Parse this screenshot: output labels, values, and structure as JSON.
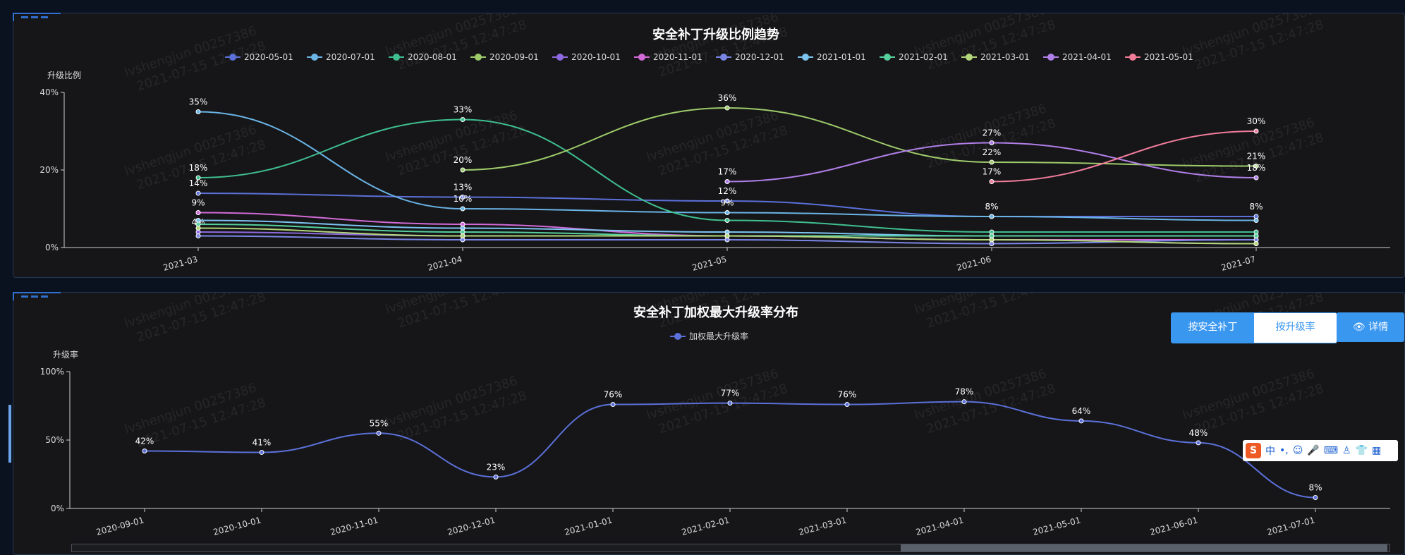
{
  "charts": {
    "trend": {
      "title": "安全补丁升级比例趋势",
      "ylabel": "升级比例"
    },
    "dist": {
      "title": "安全补丁加权最大升级率分布",
      "ylabel": "升级率"
    }
  },
  "controls": {
    "toggle_patch": "按安全补丁",
    "toggle_rate": "按升级率",
    "detail": "详情",
    "eye_icon": "eye-icon"
  },
  "watermark": {
    "line1": "lvshengjun 00257386",
    "line2": "2021-07-15 12:47:28"
  },
  "ime": {
    "logo": "S",
    "lang": "中"
  },
  "chart_data": [
    {
      "type": "line",
      "title": "安全补丁升级比例趋势",
      "xlabel": "",
      "ylabel": "升级比例",
      "ylim": [
        0,
        40
      ],
      "yticks": [
        "0%",
        "20%",
        "40%"
      ],
      "x": [
        "2021-03",
        "2021-04",
        "2021-05",
        "2021-06",
        "2021-07"
      ],
      "legend_position": "top-center",
      "series": [
        {
          "name": "2020-05-01",
          "color": "#5b70d9",
          "values": [
            14,
            13,
            12,
            8,
            8
          ]
        },
        {
          "name": "2020-07-01",
          "color": "#6ab4e6",
          "values": [
            35,
            10,
            9,
            8,
            7
          ]
        },
        {
          "name": "2020-08-01",
          "color": "#3fbf8f",
          "values": [
            18,
            33,
            7,
            4,
            4
          ]
        },
        {
          "name": "2020-09-01",
          "color": "#9ecb6a",
          "values": [
            null,
            20,
            36,
            22,
            21
          ]
        },
        {
          "name": "2020-10-01",
          "color": "#8e6ae0",
          "values": [
            4,
            3,
            3,
            2,
            1
          ]
        },
        {
          "name": "2020-11-01",
          "color": "#d26ad8",
          "values": [
            9,
            6,
            3,
            2,
            2
          ]
        },
        {
          "name": "2020-12-01",
          "color": "#7a86e6",
          "values": [
            3,
            2,
            2,
            1,
            2
          ]
        },
        {
          "name": "2021-01-01",
          "color": "#7cc3f0",
          "values": [
            7,
            5,
            4,
            3,
            3
          ]
        },
        {
          "name": "2021-02-01",
          "color": "#55cf9c",
          "values": [
            6,
            4,
            3,
            3,
            3
          ]
        },
        {
          "name": "2021-03-01",
          "color": "#b2d67a",
          "values": [
            5,
            3,
            3,
            2,
            1
          ]
        },
        {
          "name": "2021-04-01",
          "color": "#b07ee8",
          "values": [
            null,
            null,
            17,
            27,
            18
          ]
        },
        {
          "name": "2021-05-01",
          "color": "#f07c9a",
          "values": [
            null,
            null,
            null,
            17,
            30
          ]
        }
      ],
      "data_labels": [
        [
          "14%",
          "13%",
          "12%",
          "8%",
          "8%"
        ],
        [
          "35%",
          "10%",
          "9%",
          "",
          ""
        ],
        [
          "18%",
          "33%",
          "",
          "",
          ""
        ],
        [
          "",
          "20%",
          "36%",
          "22%",
          "21%"
        ],
        [
          "4%",
          "",
          "",
          "",
          ""
        ],
        [
          "9%",
          "",
          "",
          "",
          ""
        ],
        [
          "",
          "",
          "",
          "",
          ""
        ],
        [
          "",
          "",
          "",
          "",
          ""
        ],
        [
          "",
          "",
          "",
          "",
          ""
        ],
        [
          "",
          "",
          "",
          "",
          ""
        ],
        [
          "",
          "",
          "17%",
          "27%",
          "18%"
        ],
        [
          "",
          "",
          "",
          "17%",
          "30%"
        ]
      ]
    },
    {
      "type": "line",
      "title": "安全补丁加权最大升级率分布",
      "xlabel": "",
      "ylabel": "升级率",
      "ylim": [
        0,
        100
      ],
      "yticks": [
        "0%",
        "50%",
        "100%"
      ],
      "legend_position": "top-center",
      "x": [
        "2020-09-01",
        "2020-10-01",
        "2020-11-01",
        "2020-12-01",
        "2021-01-01",
        "2021-02-01",
        "2021-03-01",
        "2021-04-01",
        "2021-05-01",
        "2021-06-01",
        "2021-07-01"
      ],
      "series": [
        {
          "name": "加权最大升级率",
          "color": "#5b70d9",
          "values": [
            42,
            41,
            55,
            23,
            76,
            77,
            76,
            78,
            64,
            48,
            8
          ]
        }
      ],
      "data_labels": [
        [
          "42%",
          "41%",
          "55%",
          "23%",
          "76%",
          "77%",
          "76%",
          "78%",
          "64%",
          "48%",
          "8%"
        ]
      ]
    }
  ]
}
